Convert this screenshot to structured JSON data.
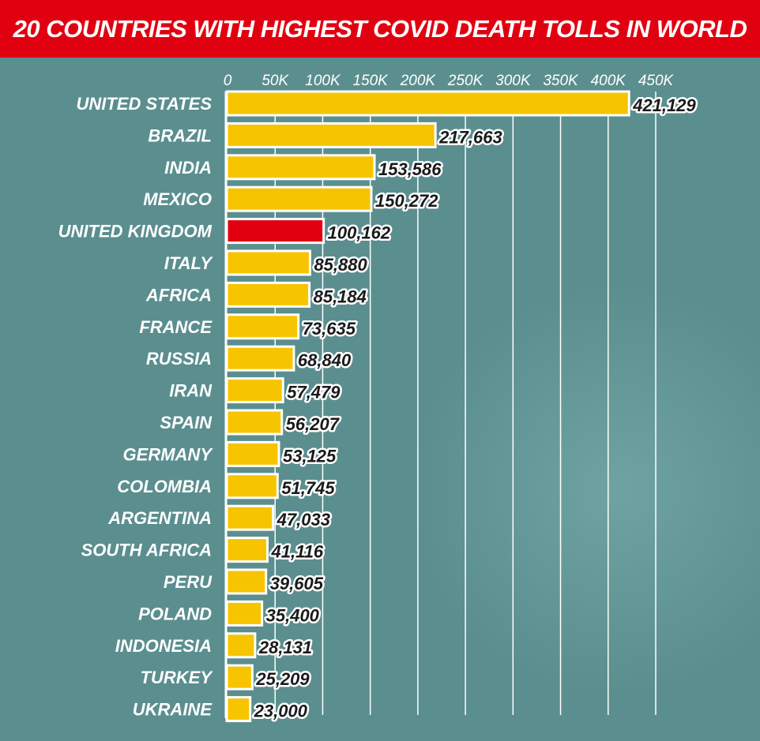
{
  "chart_data": {
    "type": "bar",
    "orientation": "horizontal",
    "title": "20 COUNTRIES WITH HIGHEST COVID DEATH TOLLS IN WORLD",
    "xlabel": "",
    "ylabel": "",
    "xlim": [
      0,
      450000
    ],
    "ticks": [
      0,
      50000,
      100000,
      150000,
      200000,
      250000,
      300000,
      350000,
      400000,
      450000
    ],
    "tick_labels": [
      "0",
      "50K",
      "100K",
      "150K",
      "200K",
      "250K",
      "300K",
      "350K",
      "400K",
      "450K"
    ],
    "grid": true,
    "categories": [
      "UNITED STATES",
      "BRAZIL",
      "INDIA",
      "MEXICO",
      "UNITED KINGDOM",
      "ITALY",
      "AFRICA",
      "FRANCE",
      "RUSSIA",
      "IRAN",
      "SPAIN",
      "GERMANY",
      "COLOMBIA",
      "ARGENTINA",
      "SOUTH AFRICA",
      "PERU",
      "POLAND",
      "INDONESIA",
      "TURKEY",
      "UKRAINE"
    ],
    "values": [
      421129,
      217663,
      153586,
      150272,
      100162,
      85880,
      85184,
      73635,
      68840,
      57479,
      56207,
      53125,
      51745,
      47033,
      41116,
      39605,
      35400,
      28131,
      25209,
      23000
    ],
    "value_labels": [
      "421,129",
      "217,663",
      "153,586",
      "150,272",
      "100,162",
      "85,880",
      "85,184",
      "73,635",
      "68,840",
      "57,479",
      "56,207",
      "53,125",
      "51,745",
      "47,033",
      "41,116",
      "39,605",
      "35,400",
      "28,131",
      "25,209",
      "23,000"
    ],
    "highlight": "UNITED KINGDOM",
    "colors": {
      "bar": "#f7c400",
      "highlight": "#e10010",
      "title_bg": "#e10010",
      "background": "#5b8e8f"
    }
  }
}
